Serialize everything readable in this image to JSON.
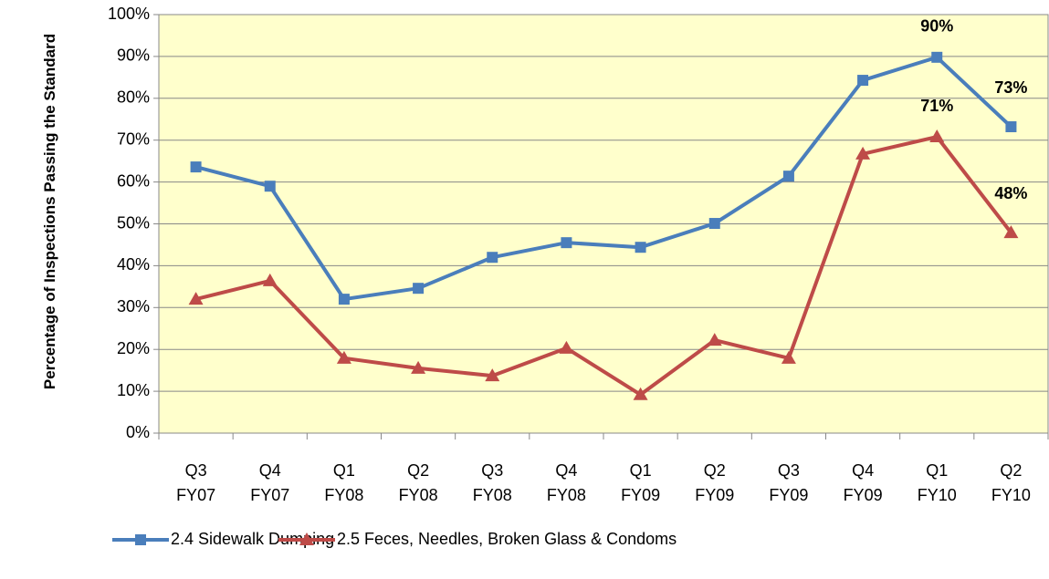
{
  "chart_data": {
    "type": "line",
    "y_label": "Percentage of Inspections Passing the Standard",
    "categories": [
      "Q3 FY07",
      "Q4 FY07",
      "Q1 FY08",
      "Q2 FY08",
      "Q3 FY08",
      "Q4 FY08",
      "Q1 FY09",
      "Q2 FY09",
      "Q3 FY09",
      "Q4 FY09",
      "Q1 FY10",
      "Q2 FY10"
    ],
    "series": [
      {
        "name": "2.4 Sidewalk Dumping",
        "color": "#4a7ebb",
        "marker": "square",
        "values": [
          63.6,
          59.0,
          32.0,
          34.6,
          42.0,
          45.5,
          44.4,
          50.1,
          61.4,
          84.3,
          89.8,
          73.2
        ],
        "value_labels": [
          null,
          null,
          null,
          null,
          null,
          null,
          null,
          null,
          null,
          null,
          "90%",
          "73%"
        ]
      },
      {
        "name": "2.5 Feces, Needles, Broken Glass & Condoms",
        "color": "#be4b48",
        "marker": "triangle",
        "values": [
          32.0,
          36.4,
          17.9,
          15.5,
          13.7,
          20.3,
          9.2,
          22.2,
          17.9,
          66.7,
          70.8,
          47.9
        ],
        "value_labels": [
          null,
          null,
          null,
          null,
          null,
          null,
          null,
          null,
          null,
          null,
          "71%",
          "48%"
        ]
      }
    ],
    "ylim": [
      0,
      100
    ],
    "yticks": [
      {
        "value": 0,
        "label": "0%"
      },
      {
        "value": 10,
        "label": "10%"
      },
      {
        "value": 20,
        "label": "20%"
      },
      {
        "value": 30,
        "label": "30%"
      },
      {
        "value": 40,
        "label": "40%"
      },
      {
        "value": 50,
        "label": "50%"
      },
      {
        "value": 60,
        "label": "60%"
      },
      {
        "value": 70,
        "label": "70%"
      },
      {
        "value": 80,
        "label": "80%"
      },
      {
        "value": 90,
        "label": "90%"
      },
      {
        "value": 100,
        "label": "100%"
      }
    ],
    "grid": true,
    "plot_background": "#ffffcc",
    "legend": "bottom"
  }
}
